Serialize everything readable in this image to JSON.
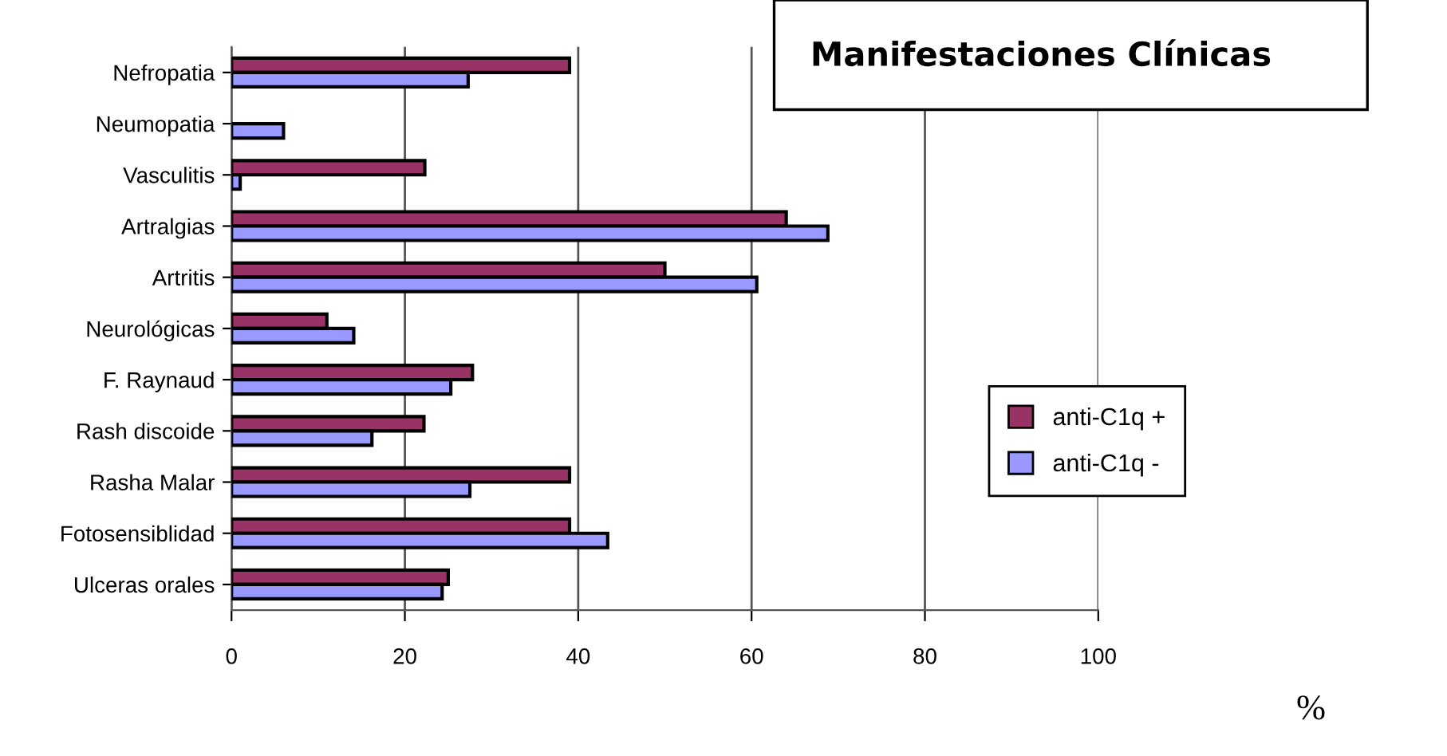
{
  "chart_data": {
    "type": "bar",
    "orientation": "horizontal",
    "title": "Manifestaciones Clínicas",
    "annotations": [
      "%"
    ],
    "categories": [
      "Nefropatia",
      "Neumopatia",
      "Vasculitis",
      "Artralgias",
      "Artritis",
      "Neurológicas",
      "F. Raynaud",
      "Rash discoide",
      "Rasha Malar",
      "Fotosensiblidad",
      "Ulceras orales"
    ],
    "series": [
      {
        "name": "anti-C1q +",
        "color": "#993366",
        "values": [
          39.0,
          null,
          22.3,
          64.0,
          50.0,
          11.0,
          27.8,
          22.2,
          39.0,
          39.0,
          25.0
        ]
      },
      {
        "name": "anti-C1q -",
        "color": "#9999ff",
        "values": [
          27.3,
          6.0,
          1.0,
          68.8,
          60.6,
          14.1,
          25.3,
          16.2,
          27.5,
          43.4,
          24.3
        ]
      }
    ],
    "xlim": [
      0,
      100
    ],
    "xticks": [
      0,
      20,
      40,
      60,
      80,
      100
    ],
    "grid": "x",
    "legend": "right"
  }
}
